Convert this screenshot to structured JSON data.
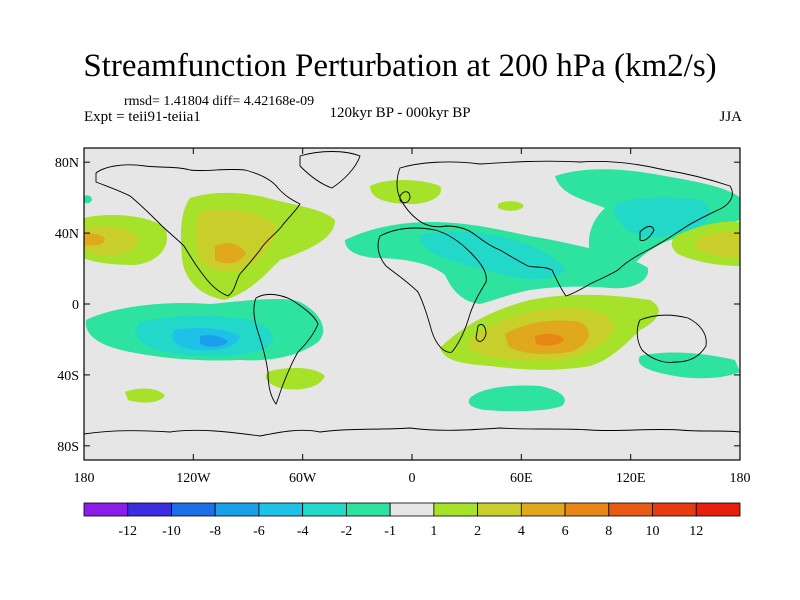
{
  "title": "Streamfunction Perturbation at 200 hPa (km2/s)",
  "stats": "rmsd= 1.41804 diff= 4.42168e-09",
  "experiment": "Expt = teii91-teiia1",
  "period": "120kyr BP - 000kyr BP",
  "season": "JJA",
  "lat_ticks": [
    "80N",
    "40N",
    "0",
    "40S",
    "80S"
  ],
  "lon_ticks": [
    "180",
    "120W",
    "60W",
    "0",
    "60E",
    "120E",
    "180"
  ],
  "colorbar": {
    "labels": [
      "-12",
      "-10",
      "-8",
      "-6",
      "-4",
      "-2",
      "-1",
      "1",
      "2",
      "4",
      "6",
      "8",
      "10",
      "12"
    ],
    "colors": [
      "#8a1ee8",
      "#3a2ee0",
      "#1c6fe6",
      "#1aa0ea",
      "#1fc2e6",
      "#22d8c8",
      "#2ee2a0",
      "#e6e6e6",
      "#a6e22a",
      "#c9cf2a",
      "#e0a81c",
      "#e88616",
      "#e85a12",
      "#e63a10",
      "#e6200c"
    ]
  },
  "background_color": "#e6e6e6"
}
